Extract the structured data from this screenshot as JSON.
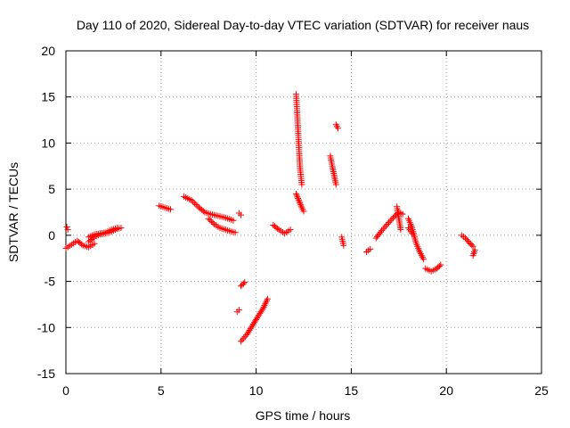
{
  "chart_data": {
    "type": "scatter",
    "title": "Day 110 of 2020, Sidereal Day-to-day VTEC variation (SDTVAR) for receiver naus",
    "xlabel": "GPS time / hours",
    "ylabel": "SDTVAR / TECUs",
    "xlim": [
      0,
      25
    ],
    "ylim": [
      -15,
      20
    ],
    "xticks": [
      "0",
      "5",
      "10",
      "15",
      "20",
      "25"
    ],
    "yticks": [
      "-15",
      "-10",
      "-5",
      "0",
      "5",
      "10",
      "15",
      "20"
    ],
    "grid": true,
    "marker": "+",
    "color": "#ff0000",
    "segments": [
      {
        "x": [
          0.0,
          0.3,
          0.6,
          0.9,
          1.2,
          1.5
        ],
        "y": [
          -1.4,
          -1.0,
          -0.6,
          -1.1,
          -1.3,
          -0.9
        ]
      },
      {
        "x": [
          0.05,
          0.1
        ],
        "y": [
          0.9,
          0.6
        ]
      },
      {
        "x": [
          1.2,
          1.5,
          1.8,
          2.1,
          2.4,
          2.7,
          2.9
        ],
        "y": [
          -0.7,
          -0.2,
          0.1,
          0.2,
          0.4,
          0.7,
          0.8
        ]
      },
      {
        "x": [
          1.2,
          1.5,
          1.8,
          2.1,
          2.4,
          2.7
        ],
        "y": [
          -0.2,
          0.1,
          0.2,
          0.3,
          0.6,
          0.8
        ]
      },
      {
        "x": [
          4.9,
          5.2,
          5.5
        ],
        "y": [
          3.2,
          3.0,
          2.8
        ]
      },
      {
        "x": [
          6.2,
          6.6,
          7.0,
          7.3,
          7.6,
          8.0,
          8.4,
          8.8
        ],
        "y": [
          4.2,
          3.8,
          3.0,
          2.5,
          2.3,
          2.1,
          1.9,
          1.6
        ]
      },
      {
        "x": [
          7.5,
          7.8,
          8.1,
          8.4,
          8.7,
          8.9
        ],
        "y": [
          1.8,
          1.2,
          0.8,
          0.6,
          0.4,
          0.3
        ]
      },
      {
        "x": [
          9.1,
          9.2
        ],
        "y": [
          2.4,
          2.2
        ]
      },
      {
        "x": [
          9.0,
          9.1
        ],
        "y": [
          -8.3,
          -8.1
        ]
      },
      {
        "x": [
          9.2,
          9.4
        ],
        "y": [
          -5.5,
          -5.1
        ]
      },
      {
        "x": [
          9.2,
          9.5,
          9.8,
          10.1,
          10.4,
          10.6
        ],
        "y": [
          -11.5,
          -10.8,
          -9.8,
          -8.8,
          -7.8,
          -6.9
        ]
      },
      {
        "x": [
          10.9,
          11.2,
          11.5,
          11.8
        ],
        "y": [
          1.1,
          0.6,
          0.2,
          0.6
        ]
      },
      {
        "x": [
          12.1,
          12.15,
          12.2,
          12.25,
          12.3,
          12.4
        ],
        "y": [
          15.3,
          13.5,
          11.5,
          9.5,
          7.5,
          5.5
        ]
      },
      {
        "x": [
          12.1,
          12.2,
          12.3,
          12.4,
          12.5
        ],
        "y": [
          4.5,
          4.0,
          3.5,
          3.0,
          2.6
        ]
      },
      {
        "x": [
          13.9,
          14.0,
          14.1,
          14.2
        ],
        "y": [
          8.6,
          7.5,
          6.5,
          5.5
        ]
      },
      {
        "x": [
          14.2,
          14.3
        ],
        "y": [
          12.0,
          11.6
        ]
      },
      {
        "x": [
          14.5,
          14.6
        ],
        "y": [
          -0.2,
          -1.1
        ]
      },
      {
        "x": [
          15.8,
          16.0
        ],
        "y": [
          -1.8,
          -1.5
        ]
      },
      {
        "x": [
          16.3,
          16.6,
          16.9,
          17.2,
          17.5,
          17.7
        ],
        "y": [
          -0.3,
          0.5,
          1.2,
          1.9,
          2.5,
          2.3
        ]
      },
      {
        "x": [
          17.4,
          17.6
        ],
        "y": [
          3.1,
          0.6
        ]
      },
      {
        "x": [
          18.0,
          18.2,
          18.4,
          18.6,
          18.8
        ],
        "y": [
          1.8,
          0.8,
          -0.8,
          -1.8,
          -2.6
        ]
      },
      {
        "x": [
          18.0,
          18.2
        ],
        "y": [
          0.8,
          0.2
        ]
      },
      {
        "x": [
          18.9,
          19.2,
          19.5,
          19.7
        ],
        "y": [
          -3.6,
          -3.9,
          -3.6,
          -3.2
        ]
      },
      {
        "x": [
          20.8,
          21.0,
          21.2,
          21.4
        ],
        "y": [
          0.0,
          -0.3,
          -0.8,
          -1.2
        ]
      },
      {
        "x": [
          21.4,
          21.5
        ],
        "y": [
          -2.2,
          -1.6
        ]
      }
    ]
  }
}
